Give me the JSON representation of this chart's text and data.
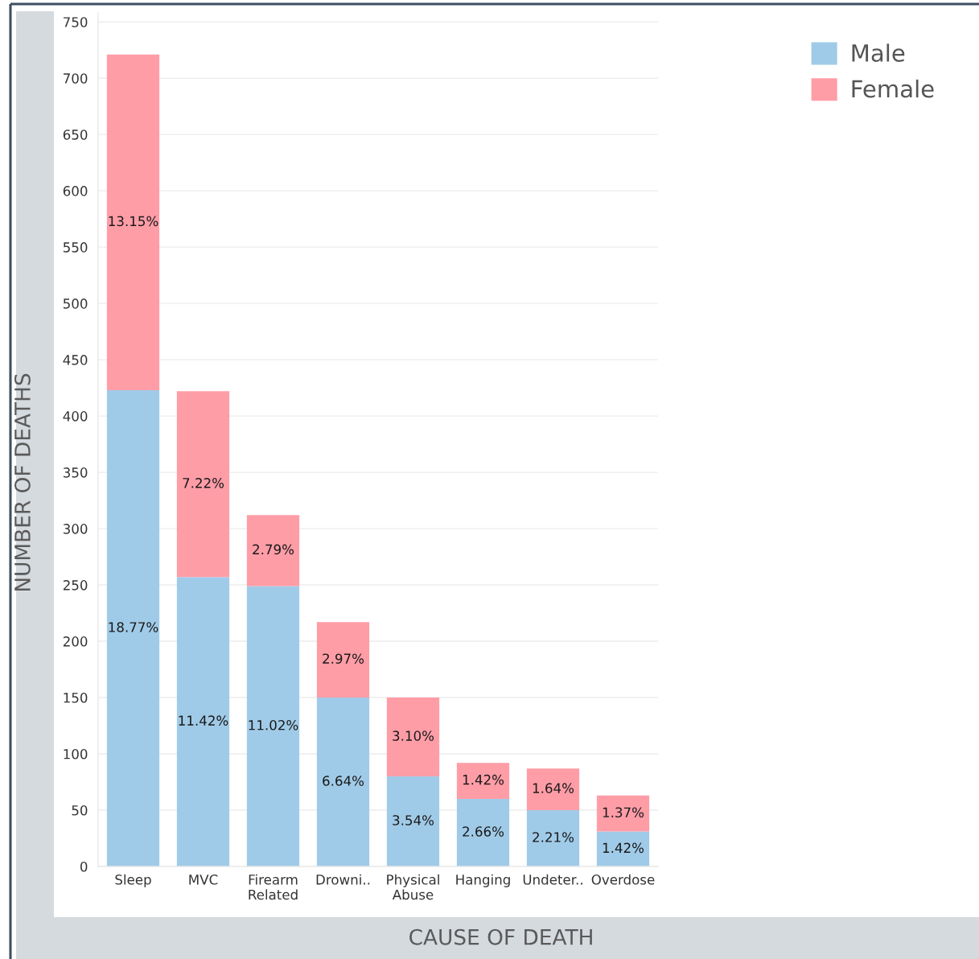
{
  "chart_data": {
    "type": "bar",
    "stacked": true,
    "xlabel": "CAUSE OF DEATH",
    "ylabel": "NUMBER OF DEATHS",
    "categories": [
      "Sleep",
      "MVC",
      "Firearm\nRelated",
      "Drowni..",
      "Physical\nAbuse",
      "Hanging",
      "Undeter..",
      "Overdose"
    ],
    "series": [
      {
        "name": "Male",
        "color": "#a0cbe8",
        "values": [
          423,
          257,
          249,
          150,
          80,
          60,
          50,
          31
        ]
      },
      {
        "name": "Female",
        "color": "#ff9da7",
        "values": [
          298,
          165,
          63,
          67,
          70,
          32,
          37,
          32
        ]
      }
    ],
    "annotations": [
      "18.77%",
      "13.15%",
      "11.42%",
      "7.22%",
      "11.02%",
      "2.79%",
      "6.64%",
      "2.97%",
      "3.54%",
      "3.10%",
      "2.66%",
      "1.42%",
      "2.21%",
      "1.64%",
      "1.42%",
      "1.37%"
    ],
    "ylim": [
      0,
      758
    ],
    "yticks": [
      0,
      50,
      100,
      150,
      200,
      250,
      300,
      350,
      400,
      450,
      500,
      550,
      600,
      650,
      700,
      750
    ],
    "grid": "y",
    "legend": "top right"
  }
}
